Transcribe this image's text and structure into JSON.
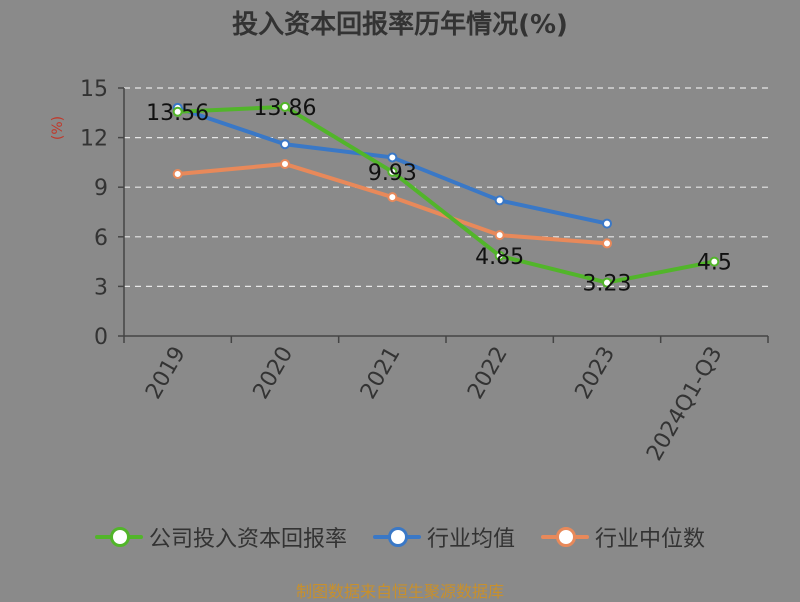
{
  "chart_data": {
    "type": "line",
    "title": "投入资本回报率历年情况(%)",
    "ylabel": "(%)",
    "categories": [
      "2019",
      "2020",
      "2021",
      "2022",
      "2023",
      "2024Q1-Q3"
    ],
    "yticks": [
      "0",
      "3",
      "6",
      "9",
      "12",
      "15"
    ],
    "ylim": [
      0,
      15
    ],
    "grid": true,
    "legend_position": "bottom",
    "series": [
      {
        "name": "公司投入资本回报率",
        "color": "#52b52a",
        "values": [
          13.56,
          13.86,
          9.93,
          4.85,
          3.23,
          4.5
        ],
        "labels": [
          "13.56",
          "13.86",
          "9.93",
          "4.85",
          "3.23",
          "4.5"
        ]
      },
      {
        "name": "行业均值",
        "color": "#3a78c6",
        "values": [
          13.8,
          11.6,
          10.8,
          8.2,
          6.8,
          null
        ]
      },
      {
        "name": "行业中位数",
        "color": "#e8895a",
        "values": [
          9.8,
          10.4,
          8.4,
          6.1,
          5.6,
          null
        ]
      }
    ]
  },
  "source_note": "制图数据来自恒生聚源数据库"
}
